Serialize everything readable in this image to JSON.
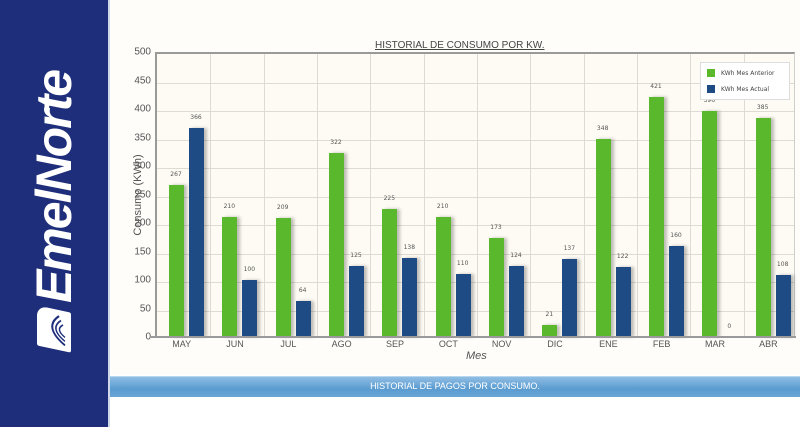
{
  "brand": {
    "name": "EmelNorte",
    "color": "#1e2e7a"
  },
  "colors": {
    "anterior": "#59b82c",
    "actual": "#1f4b84",
    "band": "#5a9bd0"
  },
  "chart_data": {
    "type": "bar",
    "title": "HISTORIAL DE CONSUMO POR KW.",
    "xlabel": "Mes",
    "ylabel": "Consumo (KWh)",
    "ylim": [
      0,
      500
    ],
    "yticks": [
      "0",
      "50",
      "100",
      "150",
      "200",
      "250",
      "300",
      "350",
      "400",
      "450",
      "500"
    ],
    "grid": true,
    "legend_position": "top-right",
    "categories": [
      "MAY",
      "JUN",
      "JUL",
      "AGO",
      "SEP",
      "OCT",
      "NOV",
      "DIC",
      "ENE",
      "FEB",
      "MAR",
      "ABR"
    ],
    "series": [
      {
        "name": "KWh Mes Anterior",
        "values": [
          267,
          210,
          209,
          322,
          225,
          210,
          173,
          21,
          348,
          421,
          396,
          385
        ]
      },
      {
        "name": "KWh Mes Actual",
        "values": [
          366,
          100,
          64,
          125,
          138,
          110,
          124,
          137,
          122,
          160,
          0,
          108
        ]
      }
    ]
  },
  "legend": {
    "anterior": "KWh Mes Anterior",
    "actual": "KWh Mes Actual"
  },
  "section": {
    "pagos_title": "HISTORIAL DE PAGOS POR CONSUMO."
  }
}
